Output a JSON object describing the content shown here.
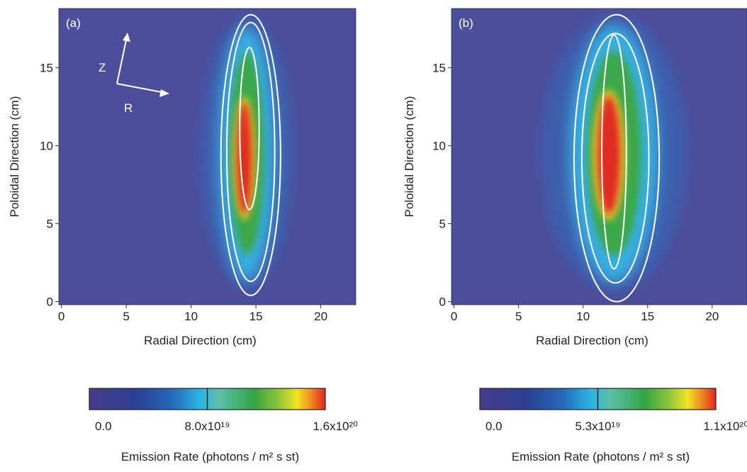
{
  "chart_data": [
    {
      "type": "heatmap",
      "panel_label": "(a)",
      "annotations": [
        "Z",
        "R"
      ],
      "xlabel": "Radial Direction (cm)",
      "ylabel": "Poloidal Direction (cm)",
      "xlim": [
        -0.2,
        22.7
      ],
      "ylim": [
        -0.2,
        18.8
      ],
      "xticks": [
        0,
        5,
        10,
        15,
        20
      ],
      "yticks": [
        0,
        5,
        10,
        15
      ],
      "colorbar": {
        "label": "Emission Rate (photons / m² s st)",
        "clim": [
          0,
          1.6e+20
        ],
        "ticks": [
          {
            "value": 0,
            "label": "0.0"
          },
          {
            "value": 8e+19,
            "label": "8.0x10¹⁹"
          },
          {
            "value": 1.6e+20,
            "label": "1.6x10²⁰"
          }
        ]
      }
    },
    {
      "type": "heatmap",
      "panel_label": "(b)",
      "xlabel": "Radial Direction (cm)",
      "ylabel": "Poloidal Direction (cm)",
      "xlim": [
        -0.2,
        22.7
      ],
      "ylim": [
        -0.2,
        18.8
      ],
      "xticks": [
        0,
        5,
        10,
        15,
        20
      ],
      "yticks": [
        0,
        5,
        10,
        15
      ],
      "colorbar": {
        "label": "Emission Rate (photons / m² s st)",
        "clim": [
          0,
          1.06e+20
        ],
        "ticks": [
          {
            "value": 0,
            "label": "0.0"
          },
          {
            "value": 5.3e+19,
            "label": "5.3x10¹⁹"
          },
          {
            "value": 1.06e+20,
            "label": "1.1x10²⁰"
          }
        ]
      }
    }
  ]
}
